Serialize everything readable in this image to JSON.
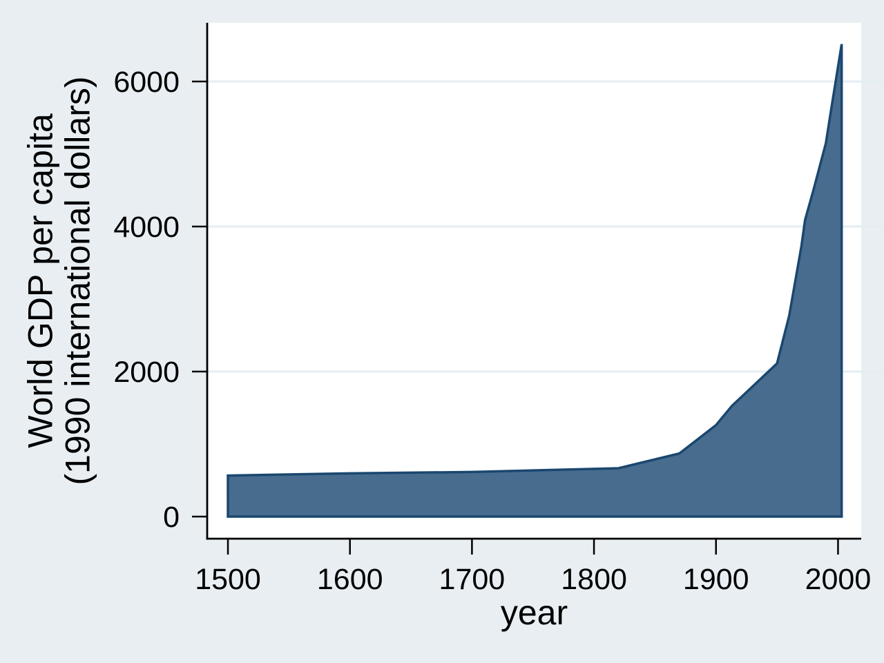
{
  "figure": {
    "description": "Area chart of world GDP per capita over time, Stata-style graph"
  },
  "chart_data": {
    "type": "area",
    "title": "",
    "xlabel": "year",
    "ylabel": "World GDP per capita (1990 international dollars)",
    "ylabel_lines": [
      "World GDP per capita",
      "(1990 international dollars)"
    ],
    "legend": "none",
    "grid_on": true,
    "xlim": [
      1483,
      2019
    ],
    "ylim": [
      -305,
      6810
    ],
    "xticks": [
      1500,
      1600,
      1700,
      1800,
      1900,
      2000
    ],
    "yticks": [
      0,
      2000,
      4000,
      6000
    ],
    "grid_y": [
      2000,
      4000,
      6000
    ],
    "baseline": 0,
    "series": [
      {
        "name": "World GDP per capita (1990 international dollars)",
        "points": [
          [
            1500,
            566
          ],
          [
            1600,
            596
          ],
          [
            1700,
            615
          ],
          [
            1820,
            667
          ],
          [
            1870,
            870
          ],
          [
            1900,
            1262
          ],
          [
            1913,
            1526
          ],
          [
            1950,
            2111
          ],
          [
            1960,
            2773
          ],
          [
            1970,
            3729
          ],
          [
            1973,
            4091
          ],
          [
            1980,
            4512
          ],
          [
            1990,
            5149
          ],
          [
            1995,
            5680
          ],
          [
            2003,
            6516
          ]
        ]
      }
    ],
    "colors": {
      "background": "#e8eef2",
      "plot_background": "#ffffff",
      "grid": "#e3edf3",
      "area_fill": "#486c8e",
      "area_line": "#1a476f",
      "axis": "#000000",
      "text": "#000000"
    }
  }
}
